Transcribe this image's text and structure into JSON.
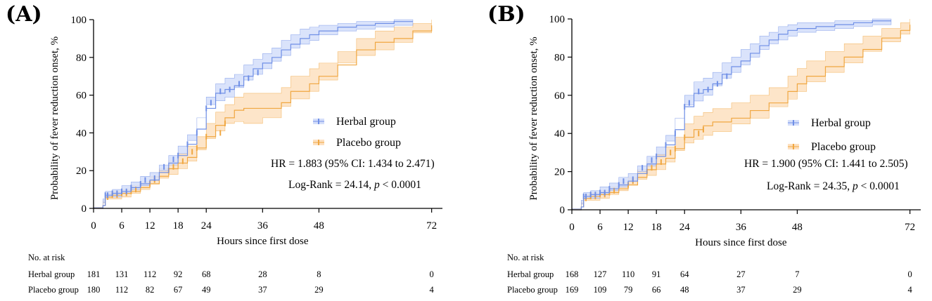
{
  "chart_data": [
    {
      "panel": "(A)",
      "type": "line",
      "xlabel": "Hours since first dose",
      "ylabel": "Probability of fever reduction onset, %",
      "xticks": [
        0,
        6,
        12,
        18,
        24,
        36,
        48,
        72
      ],
      "yticks": [
        0,
        20,
        40,
        60,
        80,
        100
      ],
      "xlim": [
        0,
        74
      ],
      "ylim": [
        0,
        100
      ],
      "legend": [
        "Herbal group",
        "Placebo group"
      ],
      "hr_text": "HR = 1.883 (95% CI: 1.434 to 2.471)",
      "logrank_prefix": "Log-Rank = 24.14, ",
      "p_symbol": "p",
      "p_suffix": " < 0.0001",
      "series": [
        {
          "name": "Herbal group",
          "color": "#6f8fe6",
          "band_color": "#d4defa",
          "x": [
            0,
            2,
            2.5,
            4,
            6,
            8,
            10,
            12,
            14,
            16,
            18,
            20,
            22,
            24,
            26,
            28,
            30,
            32,
            34,
            36,
            38,
            40,
            42,
            44,
            46,
            48,
            52,
            56,
            60,
            64,
            68
          ],
          "y": [
            0,
            1.5,
            7,
            8,
            9,
            11,
            13,
            15,
            19,
            24,
            28,
            34,
            42,
            53,
            61,
            63,
            65,
            70,
            74,
            77,
            80,
            84,
            87,
            90,
            92,
            94,
            96,
            97,
            98,
            99,
            99
          ],
          "lower": [
            0,
            0.5,
            5,
            6,
            6,
            8,
            10,
            12,
            15,
            20,
            23,
            29,
            36,
            48,
            55,
            57,
            59,
            64,
            68,
            71,
            74,
            78,
            81,
            85,
            87,
            89,
            92,
            94,
            95,
            96,
            97
          ],
          "upper": [
            0,
            3,
            9,
            10,
            12,
            14,
            17,
            19,
            23,
            28,
            33,
            39,
            48,
            59,
            66,
            69,
            71,
            76,
            79,
            82,
            85,
            89,
            92,
            95,
            96,
            97,
            98,
            99,
            99,
            100,
            100
          ],
          "censor_x": [
            2.5,
            3,
            4,
            5,
            6,
            7,
            8,
            10,
            11,
            13,
            15,
            17,
            18,
            20,
            22,
            24,
            25,
            27,
            29,
            31,
            33,
            35
          ],
          "censor_y": [
            7,
            7,
            8,
            8,
            9,
            9,
            11,
            13,
            15,
            16,
            22,
            26,
            28,
            34,
            40,
            53,
            56,
            62,
            63,
            66,
            69,
            72
          ]
        },
        {
          "name": "Placebo group",
          "color": "#f0a741",
          "band_color": "#fde0c0",
          "x": [
            0,
            2,
            2.5,
            4,
            6,
            8,
            10,
            12,
            14,
            16,
            18,
            20,
            22,
            24,
            26,
            28,
            30,
            32,
            36,
            40,
            42,
            46,
            48,
            52,
            56,
            60,
            64,
            68,
            72
          ],
          "y": [
            0,
            1.5,
            6,
            7,
            8,
            9,
            11,
            13,
            17,
            21,
            24,
            27,
            32,
            38,
            44,
            48,
            52,
            53,
            53,
            56,
            62,
            66,
            70,
            76,
            84,
            88,
            90,
            94,
            97
          ],
          "lower": [
            0,
            0.5,
            4,
            5,
            5,
            6,
            8,
            10,
            13,
            16,
            18,
            21,
            25,
            31,
            37,
            41,
            45,
            46,
            45,
            48,
            54,
            58,
            62,
            68,
            77,
            81,
            84,
            88,
            93
          ],
          "upper": [
            0,
            3,
            8,
            9,
            10,
            12,
            14,
            17,
            21,
            25,
            29,
            33,
            38,
            45,
            51,
            55,
            59,
            61,
            61,
            64,
            70,
            74,
            77,
            83,
            90,
            94,
            96,
            98,
            100
          ],
          "censor_x": [
            3,
            4,
            5,
            6,
            7,
            8,
            9,
            12,
            13,
            16,
            17,
            19,
            21,
            22,
            24,
            27,
            28
          ],
          "censor_y": [
            6,
            7,
            7,
            8,
            8,
            9,
            10,
            13,
            15,
            20,
            22,
            25,
            30,
            32,
            38,
            40,
            45
          ]
        }
      ],
      "risk_table": {
        "title": "No. at risk",
        "times": [
          0,
          6,
          12,
          18,
          24,
          36,
          48,
          72
        ],
        "rows": [
          {
            "label": "Herbal group",
            "values": [
              "181",
              "131",
              "112",
              "92",
              "68",
              "28",
              "8",
              "0"
            ]
          },
          {
            "label": "Placebo group",
            "values": [
              "180",
              "112",
              "82",
              "67",
              "49",
              "37",
              "29",
              "4"
            ]
          }
        ]
      }
    },
    {
      "panel": "(B)",
      "type": "line",
      "xlabel": "Hours since first dose",
      "ylabel": "Probability of fever reduction onset, %",
      "xticks": [
        0,
        6,
        12,
        18,
        24,
        36,
        48,
        72
      ],
      "yticks": [
        0,
        20,
        40,
        60,
        80,
        100
      ],
      "xlim": [
        0,
        74
      ],
      "ylim": [
        0,
        100
      ],
      "legend": [
        "Herbal group",
        "Placebo group"
      ],
      "hr_text": "HR = 1.900 (95% CI: 1.441 to 2.505)",
      "logrank_prefix": "Log-Rank = 24.35, ",
      "p_symbol": "p",
      "p_suffix": " < 0.0001",
      "series": [
        {
          "name": "Herbal group",
          "color": "#6f8fe6",
          "band_color": "#d4defa",
          "x": [
            0,
            2,
            2.5,
            4,
            6,
            8,
            10,
            12,
            14,
            16,
            18,
            20,
            22,
            24,
            26,
            28,
            30,
            32,
            34,
            36,
            38,
            40,
            42,
            44,
            46,
            48,
            52,
            56,
            60,
            64,
            68
          ],
          "y": [
            0,
            1.5,
            7,
            8,
            9,
            11,
            13,
            15,
            19,
            24,
            28,
            34,
            42,
            54,
            61,
            63,
            66,
            71,
            75,
            78,
            82,
            86,
            89,
            92,
            94,
            95,
            96,
            97,
            98,
            99,
            99
          ],
          "lower": [
            0,
            0.5,
            5,
            6,
            6,
            8,
            10,
            12,
            15,
            20,
            23,
            29,
            36,
            48,
            55,
            57,
            60,
            65,
            69,
            72,
            76,
            80,
            84,
            87,
            89,
            91,
            93,
            94,
            95,
            96,
            97
          ],
          "upper": [
            0,
            3,
            9,
            10,
            12,
            14,
            17,
            19,
            23,
            28,
            33,
            39,
            48,
            60,
            67,
            69,
            72,
            77,
            80,
            84,
            87,
            91,
            93,
            96,
            97,
            98,
            98,
            99,
            99,
            100,
            100
          ],
          "censor_x": [
            2.5,
            3,
            4,
            5,
            6,
            7,
            8,
            10,
            11,
            13,
            15,
            17,
            18,
            20,
            22,
            24,
            25,
            27,
            29,
            31,
            33
          ],
          "censor_y": [
            7,
            7,
            8,
            8,
            9,
            9,
            11,
            13,
            15,
            16,
            22,
            26,
            28,
            34,
            40,
            54,
            56,
            62,
            63,
            66,
            70
          ]
        },
        {
          "name": "Placebo group",
          "color": "#f0a741",
          "band_color": "#fde0c0",
          "x": [
            0,
            2,
            2.5,
            4,
            6,
            8,
            10,
            12,
            14,
            16,
            18,
            20,
            22,
            24,
            26,
            28,
            30,
            34,
            38,
            42,
            46,
            48,
            50,
            54,
            58,
            62,
            66,
            70,
            72
          ],
          "y": [
            0,
            1.5,
            6,
            7,
            8,
            9,
            11,
            13,
            17,
            21,
            24,
            27,
            32,
            38,
            42,
            44,
            46,
            48,
            52,
            56,
            62,
            66,
            70,
            75,
            80,
            84,
            90,
            94,
            97
          ],
          "lower": [
            0,
            0.5,
            4,
            5,
            5,
            6,
            8,
            10,
            13,
            16,
            18,
            21,
            25,
            31,
            35,
            37,
            39,
            41,
            45,
            48,
            54,
            58,
            62,
            67,
            72,
            77,
            83,
            88,
            92
          ],
          "upper": [
            0,
            3,
            8,
            9,
            10,
            12,
            14,
            17,
            21,
            25,
            29,
            33,
            38,
            45,
            49,
            51,
            53,
            56,
            60,
            64,
            70,
            74,
            78,
            83,
            87,
            91,
            95,
            98,
            100
          ],
          "censor_x": [
            3,
            4,
            5,
            6,
            7,
            8,
            9,
            12,
            13,
            16,
            17,
            19,
            21,
            22,
            24,
            27,
            28
          ],
          "censor_y": [
            6,
            7,
            7,
            8,
            8,
            9,
            10,
            13,
            15,
            20,
            22,
            25,
            30,
            32,
            38,
            40,
            42
          ]
        }
      ],
      "risk_table": {
        "title": "No. at risk",
        "times": [
          0,
          6,
          12,
          18,
          24,
          36,
          48,
          72
        ],
        "rows": [
          {
            "label": "Herbal group",
            "values": [
              "168",
              "127",
              "110",
              "91",
              "64",
              "27",
              "7",
              "0"
            ]
          },
          {
            "label": "Placebo group",
            "values": [
              "169",
              "109",
              "79",
              "66",
              "48",
              "37",
              "29",
              "4"
            ]
          }
        ]
      }
    }
  ]
}
